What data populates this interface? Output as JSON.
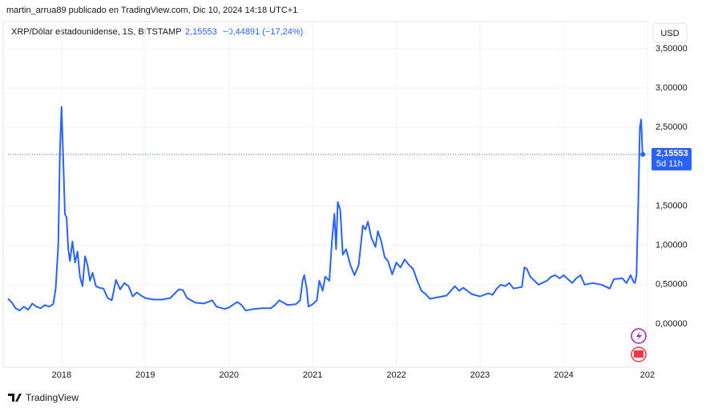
{
  "chart_data": {
    "type": "line",
    "publisher": "martin_arrua89 publicado en TradingView.com, Dic 10, 2024 14:18 UTC+1",
    "title": "XRP/Dólar estadounidense, 1S, BITSTAMP",
    "last_price": {
      "value": 2.15553,
      "label": "2,15553"
    },
    "change": "−0,44891 (−17,24%)",
    "countdown": "5d 11h",
    "currency": "USD",
    "brand": "TradingView",
    "color": "#2962ff",
    "xlim": [
      2017.36,
      2025.02
    ],
    "ylim": [
      -0.54,
      3.56
    ],
    "xticks": [
      2018,
      2019,
      2020,
      2021,
      2022,
      2023,
      2024,
      {
        "value": 2025,
        "label": "202"
      }
    ],
    "yticks": [
      {
        "value": 0,
        "label": "0,00000"
      },
      {
        "value": 0.5,
        "label": "0,50000"
      },
      {
        "value": 1,
        "label": "1,00000"
      },
      {
        "value": 1.5,
        "label": "1,50000"
      },
      {
        "value": 2.5,
        "label": "2,50000"
      },
      {
        "value": 3,
        "label": "3,00000"
      },
      {
        "value": 3.5,
        "label": "3,50000"
      }
    ],
    "grid": true,
    "x": [
      2017.36,
      2017.4,
      2017.45,
      2017.5,
      2017.55,
      2017.6,
      2017.65,
      2017.7,
      2017.75,
      2017.8,
      2017.85,
      2017.9,
      2017.93,
      2017.96,
      2017.98,
      2018.0,
      2018.02,
      2018.04,
      2018.06,
      2018.08,
      2018.1,
      2018.13,
      2018.16,
      2018.19,
      2018.22,
      2018.25,
      2018.28,
      2018.31,
      2018.34,
      2018.37,
      2018.41,
      2018.45,
      2018.5,
      2018.55,
      2018.6,
      2018.65,
      2018.7,
      2018.75,
      2018.8,
      2018.85,
      2018.9,
      2018.95,
      2019.0,
      2019.1,
      2019.2,
      2019.3,
      2019.4,
      2019.45,
      2019.5,
      2019.6,
      2019.7,
      2019.8,
      2019.85,
      2019.95,
      2020.0,
      2020.1,
      2020.15,
      2020.2,
      2020.3,
      2020.4,
      2020.5,
      2020.55,
      2020.6,
      2020.7,
      2020.8,
      2020.85,
      2020.88,
      2020.9,
      2020.93,
      2020.95,
      2021.0,
      2021.05,
      2021.08,
      2021.12,
      2021.15,
      2021.2,
      2021.23,
      2021.26,
      2021.28,
      2021.3,
      2021.33,
      2021.36,
      2021.4,
      2021.45,
      2021.5,
      2021.55,
      2021.6,
      2021.63,
      2021.66,
      2021.7,
      2021.75,
      2021.78,
      2021.82,
      2021.86,
      2021.9,
      2021.95,
      2022.0,
      2022.05,
      2022.1,
      2022.15,
      2022.2,
      2022.25,
      2022.3,
      2022.35,
      2022.4,
      2022.5,
      2022.6,
      2022.7,
      2022.75,
      2022.8,
      2022.9,
      2023.0,
      2023.1,
      2023.15,
      2023.2,
      2023.25,
      2023.3,
      2023.35,
      2023.4,
      2023.5,
      2023.53,
      2023.56,
      2023.6,
      2023.7,
      2023.8,
      2023.85,
      2023.9,
      2023.95,
      2024.0,
      2024.1,
      2024.15,
      2024.2,
      2024.25,
      2024.35,
      2024.45,
      2024.55,
      2024.6,
      2024.7,
      2024.75,
      2024.8,
      2024.83,
      2024.85,
      2024.87,
      2024.88,
      2024.89,
      2024.91,
      2024.925,
      2024.94,
      2024.945
    ],
    "values": [
      0.32,
      0.28,
      0.2,
      0.17,
      0.22,
      0.18,
      0.26,
      0.22,
      0.2,
      0.24,
      0.22,
      0.25,
      0.45,
      1.0,
      2.2,
      2.76,
      2.1,
      1.4,
      1.35,
      0.95,
      0.8,
      1.05,
      0.78,
      0.92,
      0.6,
      0.48,
      0.86,
      0.75,
      0.55,
      0.65,
      0.48,
      0.46,
      0.45,
      0.33,
      0.3,
      0.56,
      0.44,
      0.52,
      0.48,
      0.35,
      0.4,
      0.36,
      0.33,
      0.31,
      0.31,
      0.33,
      0.44,
      0.43,
      0.33,
      0.27,
      0.26,
      0.3,
      0.22,
      0.19,
      0.21,
      0.28,
      0.24,
      0.17,
      0.19,
      0.2,
      0.2,
      0.24,
      0.3,
      0.24,
      0.25,
      0.3,
      0.55,
      0.62,
      0.45,
      0.22,
      0.25,
      0.3,
      0.55,
      0.42,
      0.6,
      0.55,
      1.05,
      1.4,
      0.95,
      1.55,
      1.45,
      0.88,
      0.95,
      0.75,
      0.62,
      0.75,
      1.25,
      1.2,
      1.3,
      1.1,
      0.98,
      1.18,
      1.05,
      0.85,
      0.8,
      0.63,
      0.78,
      0.72,
      0.82,
      0.75,
      0.7,
      0.55,
      0.42,
      0.38,
      0.32,
      0.34,
      0.36,
      0.48,
      0.42,
      0.46,
      0.38,
      0.35,
      0.39,
      0.37,
      0.45,
      0.5,
      0.48,
      0.52,
      0.45,
      0.47,
      0.72,
      0.7,
      0.6,
      0.5,
      0.55,
      0.6,
      0.62,
      0.58,
      0.62,
      0.52,
      0.58,
      0.62,
      0.5,
      0.52,
      0.5,
      0.45,
      0.57,
      0.58,
      0.52,
      0.62,
      0.54,
      0.52,
      0.62,
      1.1,
      1.5,
      2.5,
      2.6,
      2.2,
      2.15553
    ]
  }
}
